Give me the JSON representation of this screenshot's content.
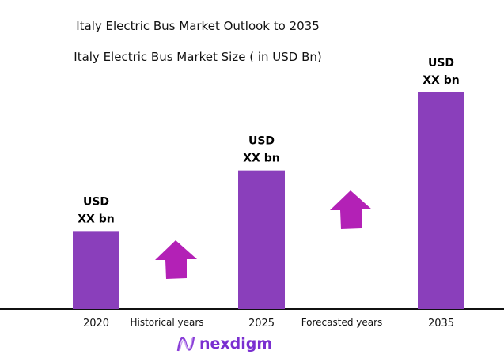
{
  "chart_data": {
    "type": "bar",
    "title": "Italy Electric Bus Market Outlook to 2035",
    "subtitle": "Italy Electric Bus Market Size ( in USD Bn)",
    "categories": [
      "2020",
      "2025",
      "2035"
    ],
    "values": [
      0.36,
      0.64,
      1.0
    ],
    "value_labels": [
      [
        "USD",
        "XX bn"
      ],
      [
        "USD",
        "XX bn"
      ],
      [
        "USD",
        "XX bn"
      ]
    ],
    "annotations": [
      "Historical years",
      "Forecasted years"
    ],
    "grid": false,
    "colors": {
      "bar": "#8a3fbb",
      "arrow": "#b321b6",
      "axis": "#111111"
    }
  },
  "logo": {
    "text": "nexdigm"
  }
}
